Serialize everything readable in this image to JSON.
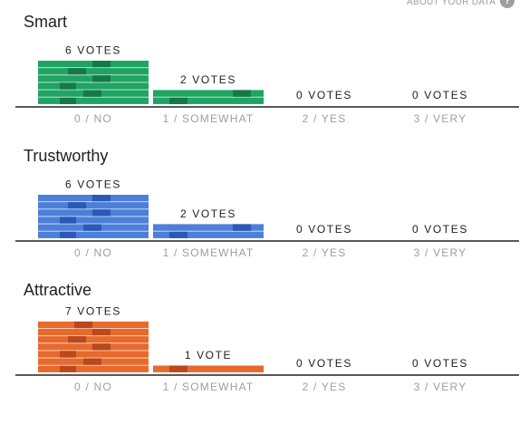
{
  "header": {
    "about_label": "ABOUT YOUR DATA",
    "help_icon": "question-mark-icon",
    "help_glyph": "?"
  },
  "chart_data": [
    {
      "type": "bar",
      "title": "Smart",
      "color": "#1fa463",
      "accent_color": "#137a47",
      "categories": [
        "0 / NO",
        "1 / SOMEWHAT",
        "2 / YES",
        "3 / VERY"
      ],
      "values": [
        6,
        2,
        0,
        0
      ],
      "value_labels": [
        "6 VOTES",
        "2 VOTES",
        "0 VOTES",
        "0 VOTES"
      ],
      "grid": false
    },
    {
      "type": "bar",
      "title": "Trustworthy",
      "color": "#4c7fd9",
      "accent_color": "#2b59b8",
      "categories": [
        "0 / NO",
        "1 / SOMEWHAT",
        "2 / YES",
        "3 / VERY"
      ],
      "values": [
        6,
        2,
        0,
        0
      ],
      "value_labels": [
        "6 VOTES",
        "2 VOTES",
        "0 VOTES",
        "0 VOTES"
      ],
      "grid": false
    },
    {
      "type": "bar",
      "title": "Attractive",
      "color": "#e8692c",
      "accent_color": "#b8491a",
      "categories": [
        "0 / NO",
        "1 / SOMEWHAT",
        "2 / YES",
        "3 / VERY"
      ],
      "values": [
        7,
        1,
        0,
        0
      ],
      "value_labels": [
        "7 VOTES",
        "1 VOTE",
        "0 VOTES",
        "0 VOTES"
      ],
      "grid": false
    }
  ]
}
